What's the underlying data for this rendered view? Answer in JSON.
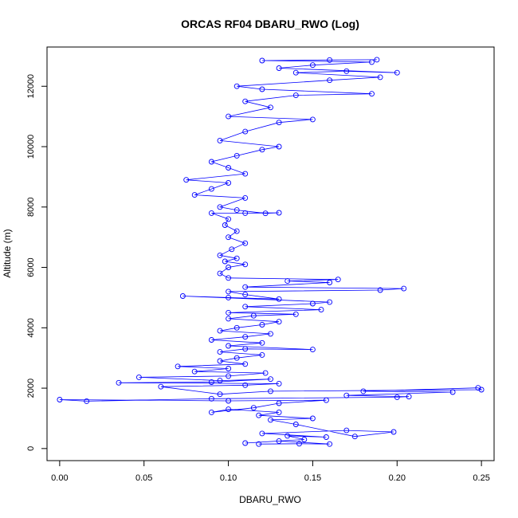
{
  "chart_data": {
    "type": "scatter",
    "title": "ORCAS RF04 DBARU_RWO (Log)",
    "xlabel": "DBARU_RWO",
    "ylabel": "Altitude (m)",
    "xlim": [
      -0.0075,
      0.2575
    ],
    "ylim": [
      -400,
      13300
    ],
    "x_ticks": [
      0.0,
      0.05,
      0.1,
      0.15,
      0.2,
      0.25
    ],
    "x_tick_labels": [
      "0.00",
      "0.05",
      "0.10",
      "0.15",
      "0.20",
      "0.25"
    ],
    "y_ticks": [
      0,
      2000,
      4000,
      6000,
      8000,
      10000,
      12000
    ],
    "y_tick_labels": [
      "0",
      "2000",
      "4000",
      "6000",
      "8000",
      "10000",
      "12000"
    ],
    "grid": false,
    "legend": "none",
    "color": "#0000ff",
    "markers": "open-circle",
    "connected": true,
    "series": [
      {
        "points": [
          [
            0.118,
            150
          ],
          [
            0.142,
            160
          ],
          [
            0.16,
            150
          ],
          [
            0.13,
            250
          ],
          [
            0.11,
            180
          ],
          [
            0.145,
            300
          ],
          [
            0.135,
            420
          ],
          [
            0.158,
            380
          ],
          [
            0.12,
            500
          ],
          [
            0.17,
            600
          ],
          [
            0.198,
            550
          ],
          [
            0.175,
            400
          ],
          [
            0.14,
            800
          ],
          [
            0.125,
            950
          ],
          [
            0.15,
            1000
          ],
          [
            0.118,
            1100
          ],
          [
            0.13,
            1200
          ],
          [
            0.1,
            1300
          ],
          [
            0.09,
            1200
          ],
          [
            0.115,
            1350
          ],
          [
            0.13,
            1500
          ],
          [
            0.158,
            1600
          ],
          [
            0.1,
            1580
          ],
          [
            0.0,
            1620
          ],
          [
            0.016,
            1570
          ],
          [
            0.09,
            1650
          ],
          [
            0.2,
            1700
          ],
          [
            0.207,
            1720
          ],
          [
            0.17,
            1760
          ],
          [
            0.233,
            1870
          ],
          [
            0.18,
            1900
          ],
          [
            0.248,
            2010
          ],
          [
            0.25,
            1950
          ],
          [
            0.125,
            1900
          ],
          [
            0.095,
            1800
          ],
          [
            0.06,
            2050
          ],
          [
            0.11,
            2100
          ],
          [
            0.13,
            2150
          ],
          [
            0.035,
            2180
          ],
          [
            0.09,
            2200
          ],
          [
            0.125,
            2300
          ],
          [
            0.095,
            2250
          ],
          [
            0.047,
            2360
          ],
          [
            0.1,
            2400
          ],
          [
            0.122,
            2500
          ],
          [
            0.08,
            2550
          ],
          [
            0.1,
            2650
          ],
          [
            0.07,
            2720
          ],
          [
            0.11,
            2800
          ],
          [
            0.095,
            2900
          ],
          [
            0.105,
            3000
          ],
          [
            0.12,
            3100
          ],
          [
            0.095,
            3200
          ],
          [
            0.11,
            3300
          ],
          [
            0.15,
            3280
          ],
          [
            0.1,
            3400
          ],
          [
            0.12,
            3500
          ],
          [
            0.09,
            3600
          ],
          [
            0.11,
            3700
          ],
          [
            0.125,
            3800
          ],
          [
            0.095,
            3900
          ],
          [
            0.105,
            4000
          ],
          [
            0.12,
            4100
          ],
          [
            0.13,
            4200
          ],
          [
            0.1,
            4300
          ],
          [
            0.115,
            4400
          ],
          [
            0.14,
            4450
          ],
          [
            0.1,
            4500
          ],
          [
            0.155,
            4600
          ],
          [
            0.11,
            4700
          ],
          [
            0.15,
            4800
          ],
          [
            0.16,
            4850
          ],
          [
            0.073,
            5050
          ],
          [
            0.1,
            5000
          ],
          [
            0.13,
            4950
          ],
          [
            0.11,
            5100
          ],
          [
            0.1,
            5200
          ],
          [
            0.19,
            5250
          ],
          [
            0.204,
            5300
          ],
          [
            0.11,
            5350
          ],
          [
            0.16,
            5500
          ],
          [
            0.135,
            5550
          ],
          [
            0.165,
            5600
          ],
          [
            0.1,
            5650
          ],
          [
            0.095,
            5800
          ],
          [
            0.1,
            6000
          ],
          [
            0.11,
            6100
          ],
          [
            0.098,
            6200
          ],
          [
            0.105,
            6300
          ],
          [
            0.095,
            6400
          ],
          [
            0.102,
            6600
          ],
          [
            0.11,
            6800
          ],
          [
            0.1,
            7000
          ],
          [
            0.105,
            7200
          ],
          [
            0.098,
            7400
          ],
          [
            0.1,
            7600
          ],
          [
            0.09,
            7800
          ],
          [
            0.11,
            7800
          ],
          [
            0.13,
            7810
          ],
          [
            0.122,
            7790
          ],
          [
            0.105,
            7900
          ],
          [
            0.095,
            8000
          ],
          [
            0.11,
            8300
          ],
          [
            0.08,
            8400
          ],
          [
            0.09,
            8600
          ],
          [
            0.1,
            8800
          ],
          [
            0.075,
            8900
          ],
          [
            0.11,
            9100
          ],
          [
            0.1,
            9300
          ],
          [
            0.09,
            9500
          ],
          [
            0.105,
            9700
          ],
          [
            0.12,
            9900
          ],
          [
            0.13,
            10000
          ],
          [
            0.095,
            10200
          ],
          [
            0.11,
            10500
          ],
          [
            0.13,
            10800
          ],
          [
            0.15,
            10900
          ],
          [
            0.1,
            11000
          ],
          [
            0.125,
            11300
          ],
          [
            0.11,
            11500
          ],
          [
            0.14,
            11700
          ],
          [
            0.185,
            11750
          ],
          [
            0.12,
            11900
          ],
          [
            0.105,
            12000
          ],
          [
            0.16,
            12200
          ],
          [
            0.19,
            12300
          ],
          [
            0.14,
            12450
          ],
          [
            0.17,
            12500
          ],
          [
            0.2,
            12450
          ],
          [
            0.13,
            12600
          ],
          [
            0.15,
            12700
          ],
          [
            0.185,
            12800
          ],
          [
            0.12,
            12850
          ],
          [
            0.16,
            12870
          ],
          [
            0.188,
            12880
          ]
        ]
      }
    ]
  }
}
